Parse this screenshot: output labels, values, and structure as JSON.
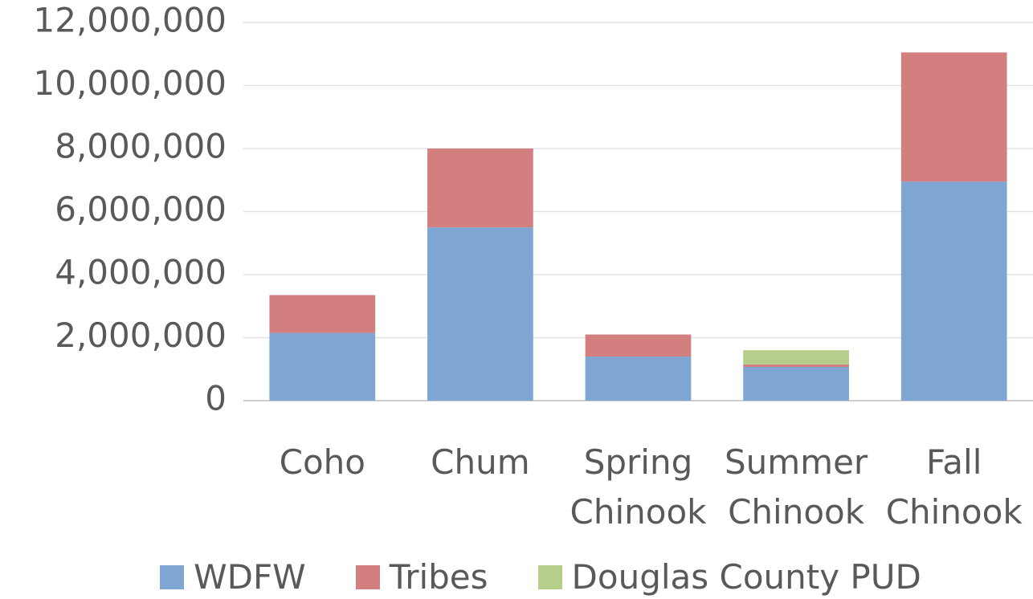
{
  "chart_data": {
    "type": "stacked_bar",
    "categories": [
      "Coho",
      "Chum",
      "Spring Chinook",
      "Summer Chinook",
      "Fall Chinook"
    ],
    "series": [
      {
        "name": "WDFW",
        "color": "#7fa6d3",
        "values": [
          2150000,
          5500000,
          1400000,
          1070000,
          6950000
        ]
      },
      {
        "name": "Tribes",
        "color": "#d47f7f",
        "values": [
          1200000,
          2500000,
          700000,
          80000,
          4100000
        ]
      },
      {
        "name": "Douglas County PUD",
        "color": "#b5cf8a",
        "values": [
          0,
          0,
          0,
          450000,
          0
        ]
      }
    ],
    "ylim": [
      0,
      12000000
    ],
    "yticks": [
      0,
      {
        "value": 2000000,
        "label": "2,000,000"
      },
      {
        "value": 4000000,
        "label": "4,000,000"
      },
      {
        "value": 6000000,
        "label": "6,000,000"
      },
      {
        "value": 8000000,
        "label": "8,000,000"
      },
      {
        "value": 10000000,
        "label": "10,000,000"
      },
      {
        "value": 12000000,
        "label": "12,000,000"
      }
    ],
    "grid": true,
    "legend": "bottom"
  }
}
